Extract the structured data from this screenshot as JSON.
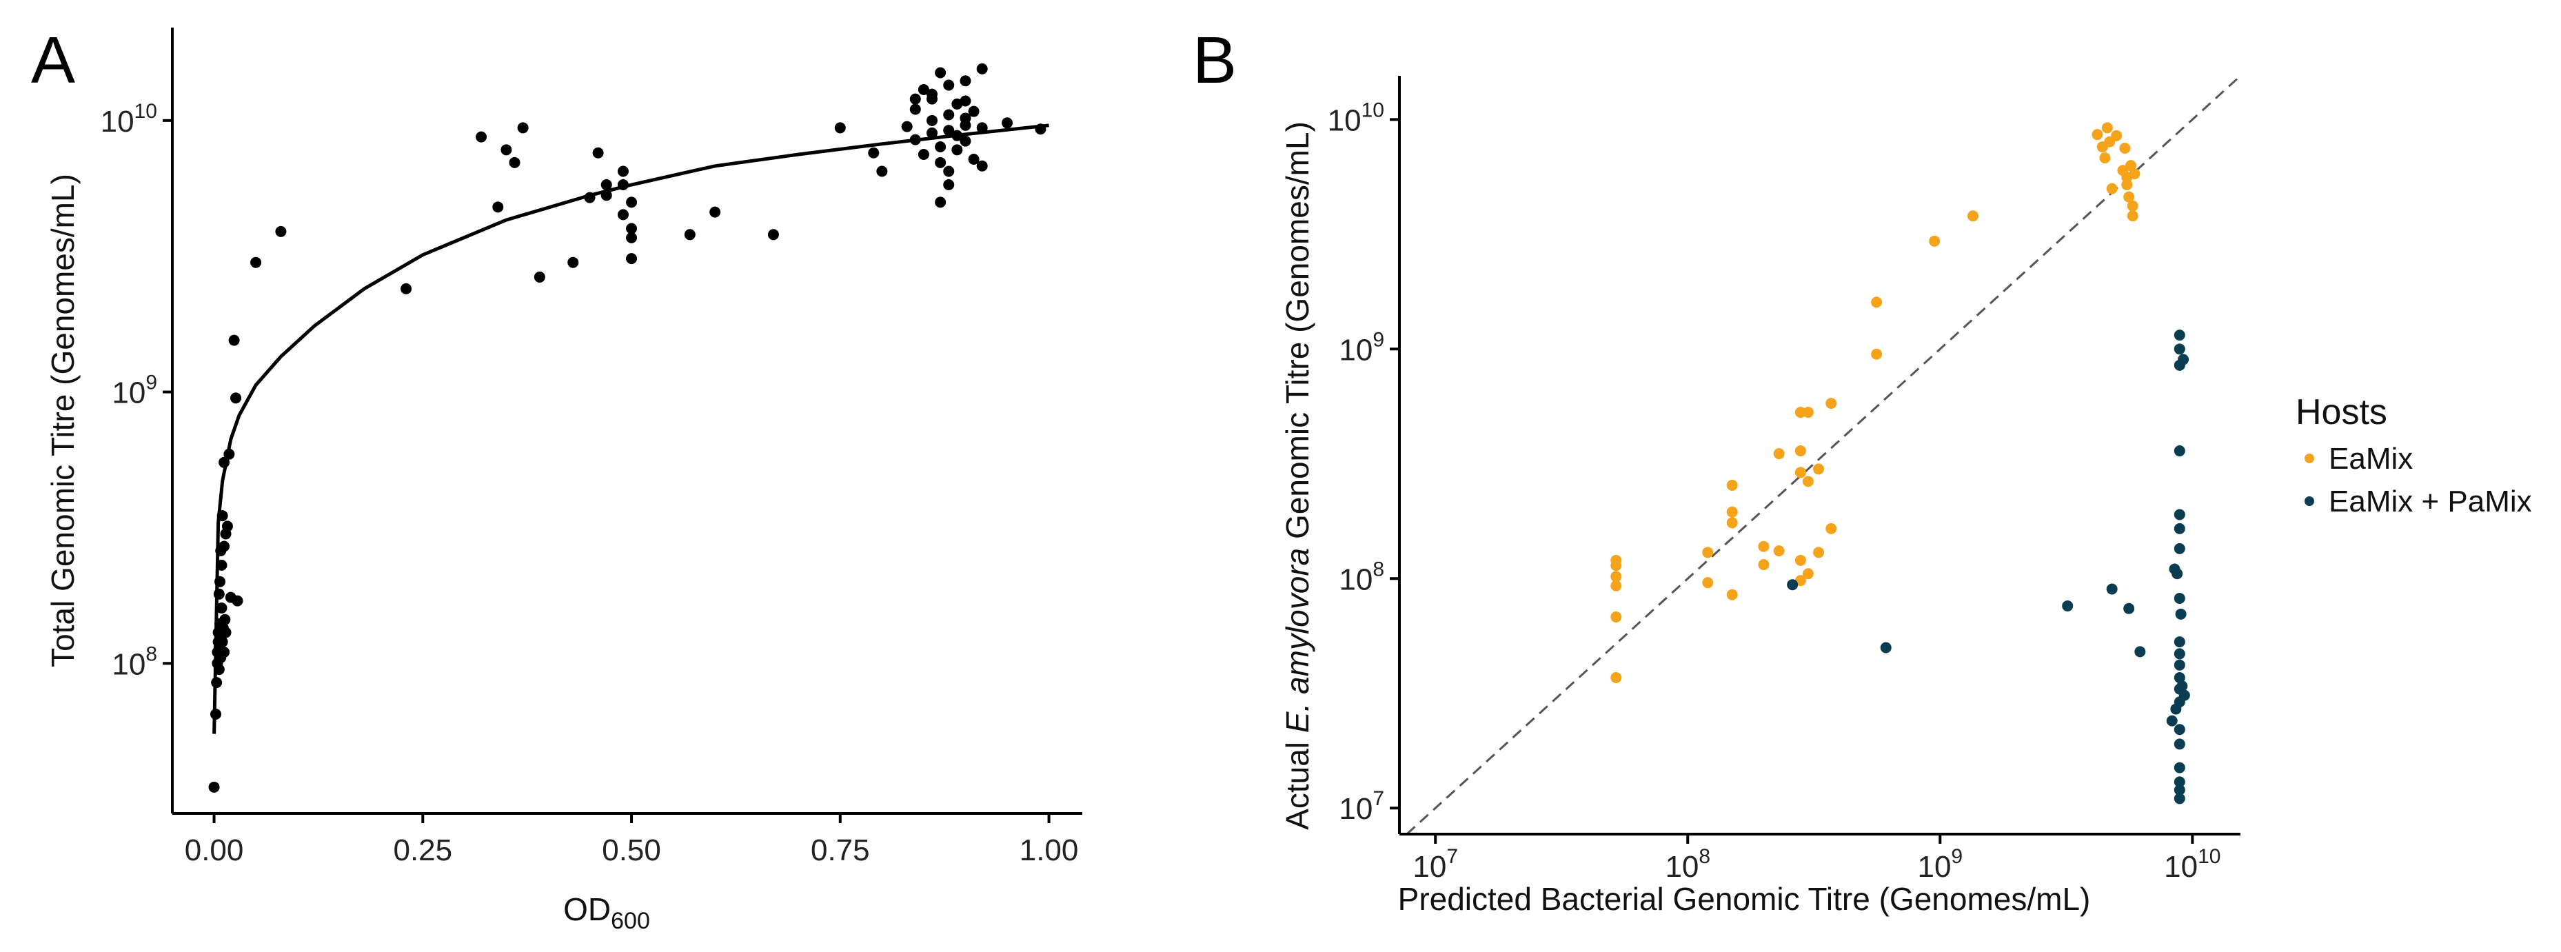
{
  "panels": {
    "a_letter": "A",
    "b_letter": "B"
  },
  "chart_data": [
    {
      "type": "scatter",
      "panel": "A",
      "xlabel_main": "OD",
      "xlabel_sub": "600",
      "ylabel": "Total Genomic Titre (Genomes/mL)",
      "xlim": [
        -0.05,
        1.04
      ],
      "ylim": [
        28000000.0,
        22000000000.0
      ],
      "yscale": "log",
      "x_ticks": [
        0.0,
        0.25,
        0.5,
        0.75,
        1.0
      ],
      "x_tick_labels": [
        "0.00",
        "0.25",
        "0.50",
        "0.75",
        "1.00"
      ],
      "y_ticks": [
        100000000.0,
        1000000000.0,
        10000000000.0
      ],
      "y_tick_labels": [
        {
          "base": "10",
          "exp": "8"
        },
        {
          "base": "10",
          "exp": "9"
        },
        {
          "base": "10",
          "exp": "10"
        }
      ],
      "point_color": "#000000",
      "fit_curve": {
        "x": [
          0.0,
          0.005,
          0.01,
          0.02,
          0.03,
          0.05,
          0.08,
          0.12,
          0.18,
          0.25,
          0.35,
          0.45,
          0.5,
          0.6,
          0.7,
          0.8,
          0.9,
          1.0
        ],
        "y": [
          55000000.0,
          330000000.0,
          470000000.0,
          670000000.0,
          820000000.0,
          1060000000.0,
          1350000000.0,
          1750000000.0,
          2400000000.0,
          3200000000.0,
          4300000000.0,
          5300000000.0,
          5800000000.0,
          6800000000.0,
          7500000000.0,
          8200000000.0,
          8900000000.0,
          9600000000.0
        ]
      },
      "points": [
        {
          "x": 0.0,
          "y": 35000000.0
        },
        {
          "x": 0.002,
          "y": 65000000.0
        },
        {
          "x": 0.003,
          "y": 85000000.0
        },
        {
          "x": 0.004,
          "y": 100000000.0
        },
        {
          "x": 0.004,
          "y": 110000000.0
        },
        {
          "x": 0.005,
          "y": 120000000.0
        },
        {
          "x": 0.005,
          "y": 130000000.0
        },
        {
          "x": 0.006,
          "y": 95000000.0
        },
        {
          "x": 0.006,
          "y": 115000000.0
        },
        {
          "x": 0.007,
          "y": 140000000.0
        },
        {
          "x": 0.008,
          "y": 125000000.0
        },
        {
          "x": 0.008,
          "y": 105000000.0
        },
        {
          "x": 0.009,
          "y": 160000000.0
        },
        {
          "x": 0.01,
          "y": 120000000.0
        },
        {
          "x": 0.011,
          "y": 135000000.0
        },
        {
          "x": 0.012,
          "y": 110000000.0
        },
        {
          "x": 0.013,
          "y": 145000000.0
        },
        {
          "x": 0.014,
          "y": 130000000.0
        },
        {
          "x": 0.006,
          "y": 180000000.0
        },
        {
          "x": 0.007,
          "y": 200000000.0
        },
        {
          "x": 0.009,
          "y": 230000000.0
        },
        {
          "x": 0.008,
          "y": 260000000.0
        },
        {
          "x": 0.012,
          "y": 270000000.0
        },
        {
          "x": 0.014,
          "y": 300000000.0
        },
        {
          "x": 0.01,
          "y": 350000000.0
        },
        {
          "x": 0.016,
          "y": 320000000.0
        },
        {
          "x": 0.02,
          "y": 175000000.0
        },
        {
          "x": 0.028,
          "y": 170000000.0
        },
        {
          "x": 0.012,
          "y": 550000000.0
        },
        {
          "x": 0.018,
          "y": 590000000.0
        },
        {
          "x": 0.026,
          "y": 950000000.0
        },
        {
          "x": 0.024,
          "y": 1550000000.0
        },
        {
          "x": 0.05,
          "y": 3000000000.0
        },
        {
          "x": 0.08,
          "y": 3900000000.0
        },
        {
          "x": 0.23,
          "y": 2400000000.0
        },
        {
          "x": 0.32,
          "y": 8700000000.0
        },
        {
          "x": 0.34,
          "y": 4800000000.0
        },
        {
          "x": 0.35,
          "y": 7800000000.0
        },
        {
          "x": 0.36,
          "y": 7000000000.0
        },
        {
          "x": 0.37,
          "y": 9400000000.0
        },
        {
          "x": 0.39,
          "y": 2650000000.0
        },
        {
          "x": 0.43,
          "y": 3000000000.0
        },
        {
          "x": 0.45,
          "y": 5200000000.0
        },
        {
          "x": 0.46,
          "y": 7600000000.0
        },
        {
          "x": 0.47,
          "y": 5800000000.0
        },
        {
          "x": 0.47,
          "y": 5300000000.0
        },
        {
          "x": 0.49,
          "y": 6500000000.0
        },
        {
          "x": 0.49,
          "y": 5800000000.0
        },
        {
          "x": 0.5,
          "y": 5000000000.0
        },
        {
          "x": 0.49,
          "y": 4500000000.0
        },
        {
          "x": 0.5,
          "y": 4000000000.0
        },
        {
          "x": 0.5,
          "y": 3700000000.0
        },
        {
          "x": 0.5,
          "y": 3100000000.0
        },
        {
          "x": 0.57,
          "y": 3800000000.0
        },
        {
          "x": 0.6,
          "y": 4600000000.0
        },
        {
          "x": 0.67,
          "y": 3800000000.0
        },
        {
          "x": 0.75,
          "y": 9400000000.0
        },
        {
          "x": 0.79,
          "y": 7600000000.0
        },
        {
          "x": 0.8,
          "y": 6500000000.0
        },
        {
          "x": 0.84,
          "y": 11000000000.0
        },
        {
          "x": 0.85,
          "y": 13000000000.0
        },
        {
          "x": 0.86,
          "y": 12000000000.0
        },
        {
          "x": 0.87,
          "y": 15000000000.0
        },
        {
          "x": 0.88,
          "y": 13500000000.0
        },
        {
          "x": 0.89,
          "y": 11500000000.0
        },
        {
          "x": 0.9,
          "y": 14000000000.0
        },
        {
          "x": 0.92,
          "y": 15500000000.0
        },
        {
          "x": 0.83,
          "y": 9500000000.0
        },
        {
          "x": 0.84,
          "y": 8500000000.0
        },
        {
          "x": 0.85,
          "y": 7500000000.0
        },
        {
          "x": 0.86,
          "y": 10000000000.0
        },
        {
          "x": 0.86,
          "y": 9000000000.0
        },
        {
          "x": 0.87,
          "y": 8000000000.0
        },
        {
          "x": 0.87,
          "y": 7000000000.0
        },
        {
          "x": 0.88,
          "y": 10500000000.0
        },
        {
          "x": 0.88,
          "y": 9200000000.0
        },
        {
          "x": 0.88,
          "y": 6500000000.0
        },
        {
          "x": 0.89,
          "y": 8800000000.0
        },
        {
          "x": 0.89,
          "y": 7800000000.0
        },
        {
          "x": 0.9,
          "y": 10200000000.0
        },
        {
          "x": 0.9,
          "y": 9600000000.0
        },
        {
          "x": 0.9,
          "y": 8400000000.0
        },
        {
          "x": 0.91,
          "y": 7200000000.0
        },
        {
          "x": 0.91,
          "y": 10800000000.0
        },
        {
          "x": 0.92,
          "y": 9400000000.0
        },
        {
          "x": 0.92,
          "y": 6800000000.0
        },
        {
          "x": 0.87,
          "y": 5000000000.0
        },
        {
          "x": 0.88,
          "y": 5800000000.0
        },
        {
          "x": 0.95,
          "y": 9800000000.0
        },
        {
          "x": 0.99,
          "y": 9300000000.0
        },
        {
          "x": 0.86,
          "y": 12500000000.0
        },
        {
          "x": 0.84,
          "y": 12000000000.0
        },
        {
          "x": 0.9,
          "y": 11800000000.0
        }
      ]
    },
    {
      "type": "scatter",
      "panel": "B",
      "xlabel": "Predicted Bacterial Genomic Titre (Genomes/mL)",
      "ylabel_pre": "Actual ",
      "ylabel_italic": "E. amylovora",
      "ylabel_post": " Genomic Titre (Genomes/mL)",
      "xlim": [
        7200000.0,
        15500000000.0
      ],
      "ylim": [
        7700000.0,
        15500000000.0
      ],
      "xscale": "log",
      "yscale": "log",
      "x_ticks": [
        10000000.0,
        100000000.0,
        1000000000.0,
        10000000000.0
      ],
      "x_tick_labels": [
        {
          "base": "10",
          "exp": "7"
        },
        {
          "base": "10",
          "exp": "8"
        },
        {
          "base": "10",
          "exp": "9"
        },
        {
          "base": "10",
          "exp": "10"
        }
      ],
      "y_ticks": [
        10000000.0,
        100000000.0,
        1000000000.0,
        10000000000.0
      ],
      "y_tick_labels": [
        {
          "base": "10",
          "exp": "7"
        },
        {
          "base": "10",
          "exp": "8"
        },
        {
          "base": "10",
          "exp": "9"
        },
        {
          "base": "10",
          "exp": "10"
        }
      ],
      "reference_line": "y = x (dashed)",
      "legend": {
        "title": "Hosts",
        "placement": "right",
        "entries": [
          {
            "label": "EaMix",
            "color": "#f5a31a"
          },
          {
            "label": "EaMix + PaMix",
            "color": "#0a3d52"
          }
        ]
      },
      "series": [
        {
          "name": "EaMix",
          "color": "#f5a31a",
          "points": [
            {
              "x": 52000000.0,
              "y": 37000000.0
            },
            {
              "x": 52000000.0,
              "y": 68000000.0
            },
            {
              "x": 52000000.0,
              "y": 93000000.0
            },
            {
              "x": 52000000.0,
              "y": 102000000.0
            },
            {
              "x": 52000000.0,
              "y": 114000000.0
            },
            {
              "x": 52000000.0,
              "y": 120000000.0
            },
            {
              "x": 120000000.0,
              "y": 96000000.0
            },
            {
              "x": 120000000.0,
              "y": 130000000.0
            },
            {
              "x": 150000000.0,
              "y": 85000000.0
            },
            {
              "x": 150000000.0,
              "y": 175000000.0
            },
            {
              "x": 150000000.0,
              "y": 195000000.0
            },
            {
              "x": 150000000.0,
              "y": 255000000.0
            },
            {
              "x": 200000000.0,
              "y": 115000000.0
            },
            {
              "x": 200000000.0,
              "y": 138000000.0
            },
            {
              "x": 230000000.0,
              "y": 132000000.0
            },
            {
              "x": 230000000.0,
              "y": 350000000.0
            },
            {
              "x": 280000000.0,
              "y": 98000000.0
            },
            {
              "x": 280000000.0,
              "y": 120000000.0
            },
            {
              "x": 280000000.0,
              "y": 290000000.0
            },
            {
              "x": 280000000.0,
              "y": 360000000.0
            },
            {
              "x": 280000000.0,
              "y": 530000000.0
            },
            {
              "x": 300000000.0,
              "y": 105000000.0
            },
            {
              "x": 300000000.0,
              "y": 265000000.0
            },
            {
              "x": 300000000.0,
              "y": 530000000.0
            },
            {
              "x": 330000000.0,
              "y": 130000000.0
            },
            {
              "x": 330000000.0,
              "y": 300000000.0
            },
            {
              "x": 370000000.0,
              "y": 165000000.0
            },
            {
              "x": 370000000.0,
              "y": 580000000.0
            },
            {
              "x": 560000000.0,
              "y": 950000000.0
            },
            {
              "x": 560000000.0,
              "y": 1600000000.0
            },
            {
              "x": 950000000.0,
              "y": 2950000000.0
            },
            {
              "x": 1350000000.0,
              "y": 3800000000.0
            },
            {
              "x": 4200000000.0,
              "y": 8600000000.0
            },
            {
              "x": 4400000000.0,
              "y": 7600000000.0
            },
            {
              "x": 4500000000.0,
              "y": 6800000000.0
            },
            {
              "x": 4600000000.0,
              "y": 9200000000.0
            },
            {
              "x": 4700000000.0,
              "y": 8000000000.0
            },
            {
              "x": 4800000000.0,
              "y": 5000000000.0
            },
            {
              "x": 5000000000.0,
              "y": 8500000000.0
            },
            {
              "x": 5300000000.0,
              "y": 6000000000.0
            },
            {
              "x": 5400000000.0,
              "y": 7500000000.0
            },
            {
              "x": 5500000000.0,
              "y": 5600000000.0
            },
            {
              "x": 5500000000.0,
              "y": 5200000000.0
            },
            {
              "x": 5600000000.0,
              "y": 4600000000.0
            },
            {
              "x": 5700000000.0,
              "y": 6300000000.0
            },
            {
              "x": 5800000000.0,
              "y": 4200000000.0
            },
            {
              "x": 5800000000.0,
              "y": 3800000000.0
            },
            {
              "x": 5900000000.0,
              "y": 5800000000.0
            }
          ]
        },
        {
          "name": "EaMix + PaMix",
          "color": "#0a3d52",
          "points": [
            {
              "x": 260000000.0,
              "y": 94000000.0
            },
            {
              "x": 610000000.0,
              "y": 50000000.0
            },
            {
              "x": 3200000000.0,
              "y": 76000000.0
            },
            {
              "x": 4800000000.0,
              "y": 90000000.0
            },
            {
              "x": 5600000000.0,
              "y": 74000000.0
            },
            {
              "x": 6200000000.0,
              "y": 48000000.0
            },
            {
              "x": 8300000000.0,
              "y": 24000000.0
            },
            {
              "x": 8500000000.0,
              "y": 110000000.0
            },
            {
              "x": 8600000000.0,
              "y": 27000000.0
            },
            {
              "x": 8700000000.0,
              "y": 105000000.0
            },
            {
              "x": 8900000000.0,
              "y": 1150000000.0
            },
            {
              "x": 8900000000.0,
              "y": 1000000000.0
            },
            {
              "x": 8900000000.0,
              "y": 850000000.0
            },
            {
              "x": 8900000000.0,
              "y": 360000000.0
            },
            {
              "x": 8900000000.0,
              "y": 190000000.0
            },
            {
              "x": 8900000000.0,
              "y": 165000000.0
            },
            {
              "x": 8900000000.0,
              "y": 135000000.0
            },
            {
              "x": 8900000000.0,
              "y": 82000000.0
            },
            {
              "x": 8900000000.0,
              "y": 53000000.0
            },
            {
              "x": 8900000000.0,
              "y": 47000000.0
            },
            {
              "x": 8900000000.0,
              "y": 42000000.0
            },
            {
              "x": 8900000000.0,
              "y": 37000000.0
            },
            {
              "x": 8900000000.0,
              "y": 33000000.0
            },
            {
              "x": 8900000000.0,
              "y": 29000000.0
            },
            {
              "x": 8900000000.0,
              "y": 22000000.0
            },
            {
              "x": 8900000000.0,
              "y": 19000000.0
            },
            {
              "x": 8900000000.0,
              "y": 15000000.0
            },
            {
              "x": 8900000000.0,
              "y": 13000000.0
            },
            {
              "x": 8900000000.0,
              "y": 12000000.0
            },
            {
              "x": 8900000000.0,
              "y": 11000000.0
            },
            {
              "x": 9000000000.0,
              "y": 70000000.0
            },
            {
              "x": 9100000000.0,
              "y": 34000000.0
            },
            {
              "x": 9200000000.0,
              "y": 900000000.0
            },
            {
              "x": 9300000000.0,
              "y": 31000000.0
            }
          ]
        }
      ]
    }
  ]
}
